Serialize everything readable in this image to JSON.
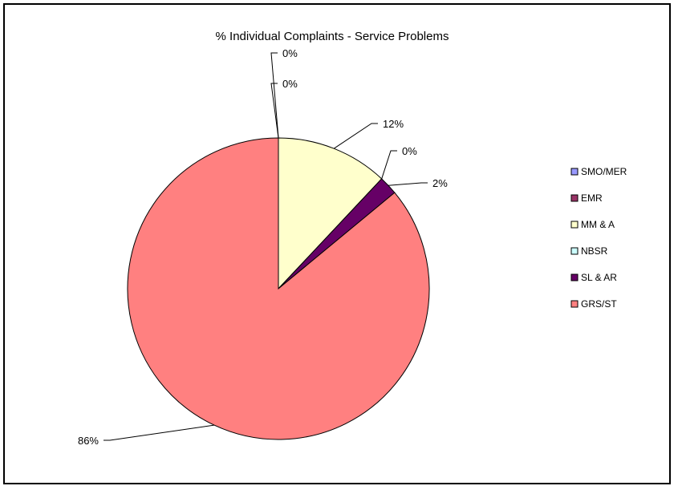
{
  "chart_data": {
    "type": "pie",
    "title": "% Individual Complaints - Service Problems",
    "categories": [
      "SMO/MER",
      "EMR",
      "MM & A",
      "NBSR",
      "SL & AR",
      "GRS/ST"
    ],
    "values": [
      0,
      0,
      12,
      0,
      2,
      86
    ],
    "data_labels": [
      "0%",
      "0%",
      "12%",
      "0%",
      "2%",
      "86%"
    ],
    "colors": [
      "#9999FF",
      "#993366",
      "#FFFFCC",
      "#CCFFFF",
      "#660066",
      "#FF8080"
    ],
    "legend_position": "right",
    "start_angle": "12 o'clock",
    "direction": "clockwise"
  }
}
